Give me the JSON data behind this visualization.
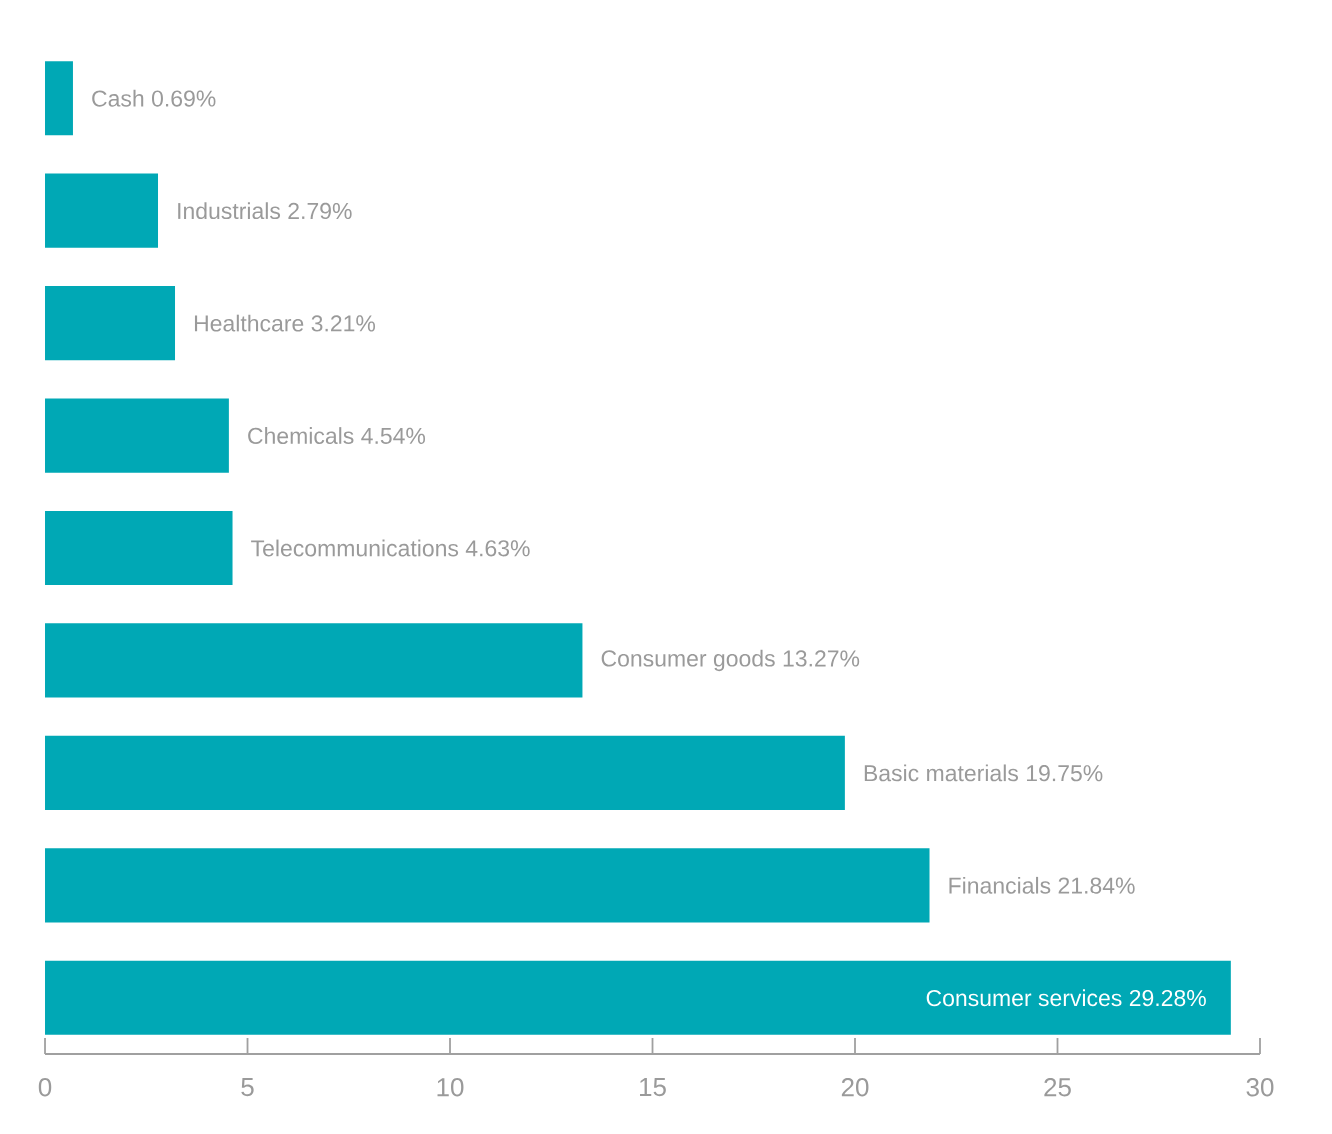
{
  "chart_data": {
    "type": "bar",
    "orientation": "horizontal",
    "categories": [
      null,
      null,
      null,
      null,
      null,
      null,
      null,
      null,
      null
    ],
    "values": [
      0.69,
      2.79,
      3.21,
      4.54,
      4.63,
      13.27,
      19.75,
      21.84,
      29.28
    ],
    "value_labels": [
      "Cash 0.69%",
      "Industrials 2.79%",
      "Healthcare 3.21%",
      "Chemicals 4.54%",
      "Telecommunications 4.63%",
      "Consumer goods 13.27%",
      "Basic materials 19.75%",
      "Financials 21.84%",
      "Consumer services 29.28%"
    ],
    "color": "#00a8b5",
    "xlim": [
      0,
      30
    ],
    "xticks": [
      0,
      5,
      10,
      15,
      20,
      25,
      30
    ],
    "grid": false
  }
}
